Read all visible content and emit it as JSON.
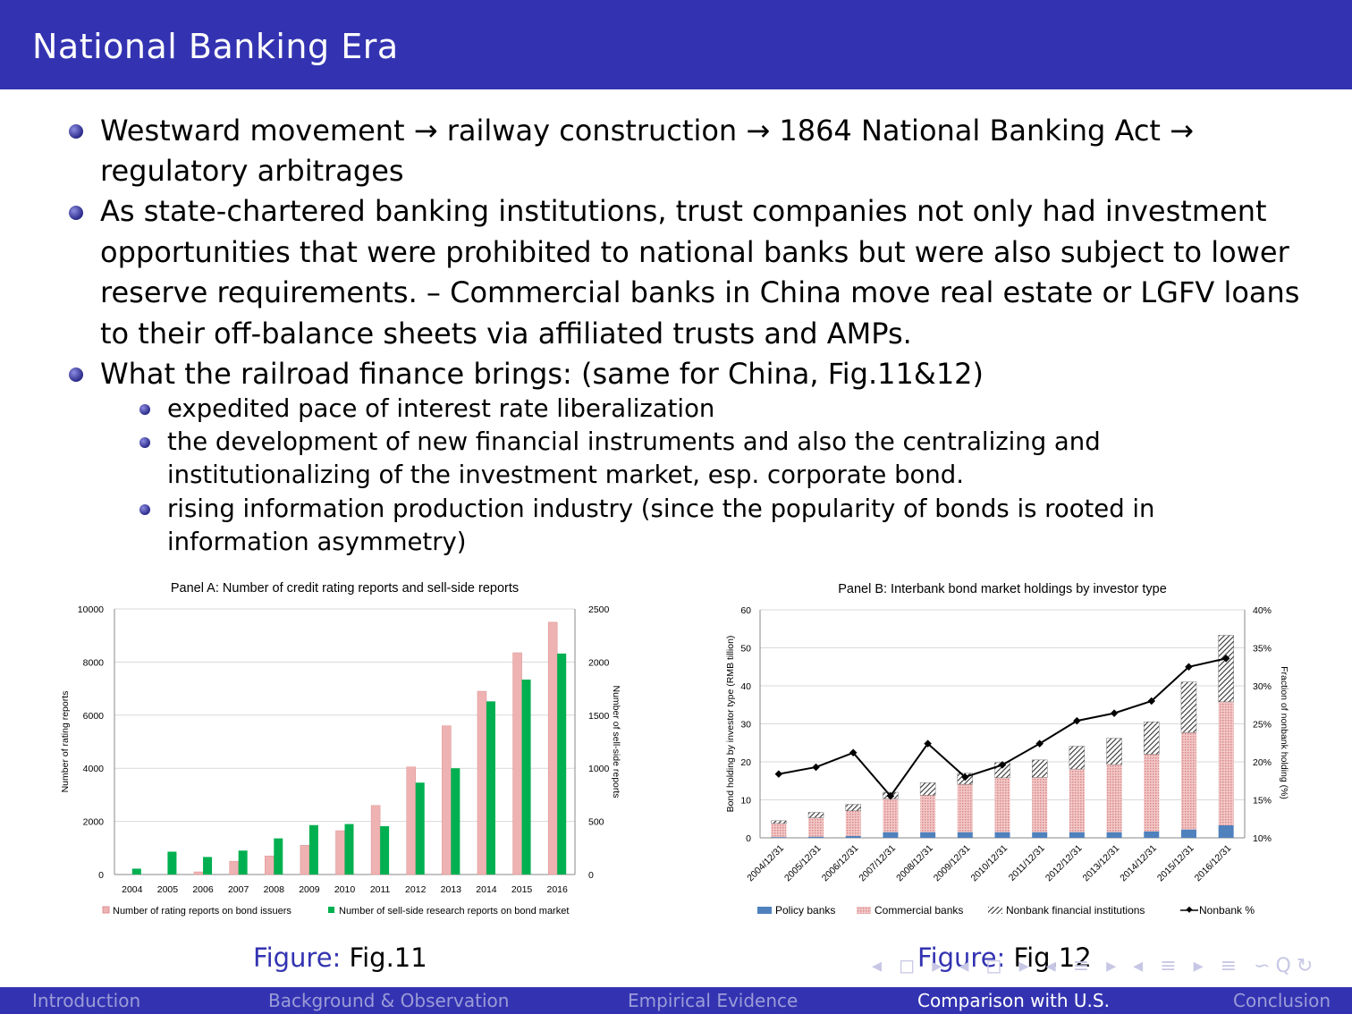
{
  "header": {
    "title": "National Banking Era"
  },
  "bullets": [
    {
      "lines": [
        "Westward movement → railway construction → 1864 National Banking Act →",
        "regulatory arbitrages"
      ]
    },
    {
      "lines": [
        "As state-chartered banking institutions, trust companies not only had investment",
        "opportunities that were prohibited to national banks but were also subject to lower",
        "reserve requirements. – Commercial banks in China move real estate or LGFV loans",
        "to their off-balance sheets via affiliated trusts and AMPs."
      ]
    },
    {
      "lines": [
        "What the railroad finance brings: (same for China, Fig.11&12)"
      ]
    }
  ],
  "subbullets": [
    {
      "lines": [
        "expedited pace of interest rate liberalization"
      ]
    },
    {
      "lines": [
        "the development of new financial instruments and also the centralizing and",
        "institutionalizing of the investment market, esp. corporate bond."
      ]
    },
    {
      "lines": [
        "rising information production industry (since the popularity of bonds is rooted in",
        "information asymmetry)"
      ]
    }
  ],
  "captions": [
    {
      "label": "Figure:",
      "text": "Fig.11"
    },
    {
      "label": "Figure:",
      "text": "Fig.12"
    }
  ],
  "footer": {
    "sections": [
      "Introduction",
      "Background & Observation",
      "Empirical Evidence",
      "Comparison with U.S.",
      "Conclusion"
    ],
    "active": "Comparison with U.S."
  },
  "nav_symbols": "◂ ◻ ▸ ◂ ◻ ▸ ◂ ≡ ▸ ◂ ≡ ▸ ≡ ∽Q↻",
  "chart_data": [
    {
      "type": "bar",
      "title": "Panel A: Number of credit rating reports and sell-side reports",
      "ylabel": "Number of rating reports",
      "y2label": "Number of sell-side reports",
      "ylim": [
        0,
        10000
      ],
      "y2lim": [
        0,
        2500
      ],
      "yticks": [
        0,
        2000,
        4000,
        6000,
        8000,
        10000
      ],
      "y2ticks": [
        0,
        500,
        1000,
        1500,
        2000,
        2500
      ],
      "categories": [
        "2004",
        "2005",
        "2006",
        "2007",
        "2008",
        "2009",
        "2010",
        "2011",
        "2012",
        "2013",
        "2014",
        "2015",
        "2016"
      ],
      "series": [
        {
          "name": "Number of rating reports on bond issuers",
          "axis": "left",
          "color": "#e8a3a3",
          "values": [
            0,
            0,
            100,
            500,
            700,
            1100,
            1650,
            2600,
            4050,
            5600,
            6900,
            8350,
            9500
          ]
        },
        {
          "name": "Number of sell-side research reports on bond market",
          "axis": "right",
          "color": "#00b050",
          "values": [
            55,
            215,
            165,
            225,
            340,
            465,
            475,
            455,
            865,
            1000,
            1630,
            1835,
            2080
          ]
        }
      ],
      "legend": "bottom"
    },
    {
      "type": "bar",
      "title": "Panel B: Interbank bond market holdings by investor type",
      "ylabel": "Bond holding by investor type (RMB tillion)",
      "y2label": "Fraction of nonbank holding (%)",
      "ylim": [
        0,
        60
      ],
      "y2lim": [
        10,
        40
      ],
      "yticks": [
        0,
        10,
        20,
        30,
        40,
        50,
        60
      ],
      "y2ticks": [
        "10%",
        "15%",
        "20%",
        "25%",
        "30%",
        "35%",
        "40%"
      ],
      "categories": [
        "2004/12/31",
        "2005/12/31",
        "2006/12/31",
        "2007/12/31",
        "2008/12/31",
        "2009/12/31",
        "2010/12/31",
        "2011/12/31",
        "2012/12/31",
        "2013/12/31",
        "2014/12/31",
        "2015/12/31",
        "2016/12/31"
      ],
      "series": [
        {
          "name": "Policy banks",
          "stack": true,
          "color": "#4f81bd",
          "values": [
            0.2,
            0.3,
            0.5,
            1.5,
            1.5,
            1.5,
            1.5,
            1.5,
            1.5,
            1.5,
            1.7,
            2.2,
            3.3
          ]
        },
        {
          "name": "Commercial banks",
          "stack": true,
          "color": "#e8a3a3",
          "values": [
            3.6,
            5.0,
            6.6,
            8.8,
            9.7,
            12.6,
            14.3,
            14.4,
            16.6,
            17.8,
            20.3,
            25.5,
            32.5
          ]
        },
        {
          "name": "Nonbank financial institutions",
          "stack": true,
          "color": "#444444",
          "values": [
            0.7,
            1.4,
            1.7,
            1.7,
            3.3,
            2.9,
            4.0,
            4.6,
            6.0,
            6.9,
            8.5,
            13.3,
            17.5
          ]
        },
        {
          "name": "Nonbank %",
          "axis": "right",
          "type": "line",
          "color": "#000000",
          "values": [
            18.4,
            19.3,
            21.2,
            15.5,
            22.4,
            18.0,
            19.6,
            22.4,
            25.4,
            26.4,
            28.0,
            32.5,
            33.6
          ]
        }
      ],
      "legend": "bottom"
    }
  ]
}
